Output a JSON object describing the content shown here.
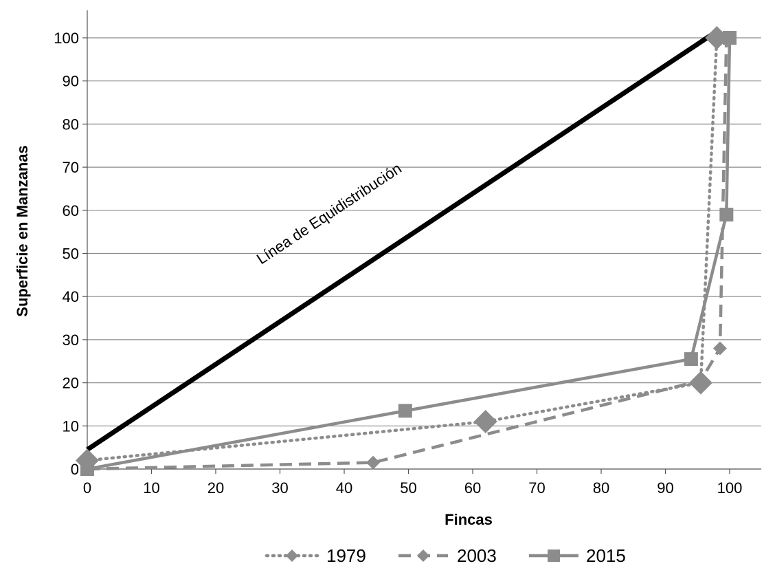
{
  "chart_data": {
    "type": "line",
    "title": "",
    "xlabel": "Fincas",
    "ylabel": "Superficie en Manzanas",
    "xlim": [
      0,
      100
    ],
    "ylim": [
      0,
      100
    ],
    "xticks": [
      "0",
      "10",
      "20",
      "30",
      "40",
      "50",
      "60",
      "70",
      "80",
      "90",
      "100"
    ],
    "yticks": [
      "0",
      "10",
      "20",
      "30",
      "40",
      "50",
      "60",
      "70",
      "80",
      "90",
      "100"
    ],
    "grid": "horizontal",
    "legend_position": "bottom",
    "annotation": "Línea de Equidistribución",
    "equidistribution_line": {
      "x": [
        0,
        98
      ],
      "y": [
        4.5,
        101.5
      ],
      "color": "#000000"
    },
    "series": [
      {
        "name": "1979",
        "style": "dotted",
        "marker": "diamond",
        "color": "#8c8c8c",
        "x": [
          0,
          62,
          95.5,
          98,
          98
        ],
        "y": [
          2,
          11,
          20,
          100,
          100
        ]
      },
      {
        "name": "2003",
        "style": "dashed",
        "marker": "diamond",
        "color": "#8c8c8c",
        "x": [
          0,
          44.5,
          95.5,
          98.5,
          99.5,
          100
        ],
        "y": [
          0,
          1.5,
          20.5,
          28,
          100,
          100
        ]
      },
      {
        "name": "2015",
        "style": "solid",
        "marker": "square",
        "color": "#8c8c8c",
        "x": [
          0,
          49.5,
          94,
          99.5,
          100,
          100
        ],
        "y": [
          0,
          13.5,
          25.5,
          59,
          100,
          100
        ]
      }
    ]
  }
}
